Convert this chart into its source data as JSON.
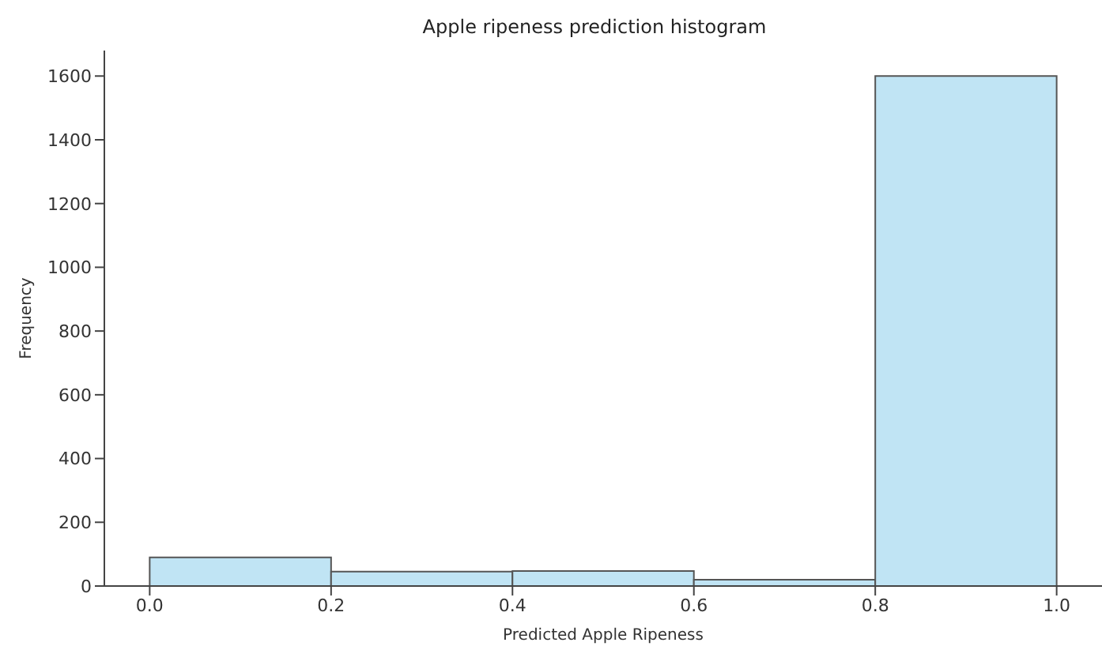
{
  "chart_data": {
    "type": "histogram",
    "title": "Apple ripeness prediction histogram",
    "xlabel": "Predicted Apple Ripeness",
    "ylabel": "Frequency",
    "bins": [
      0.0,
      0.2,
      0.4,
      0.6,
      0.8,
      1.0
    ],
    "values": [
      90,
      45,
      47,
      20,
      1600
    ],
    "color": "#c0e4f4",
    "xlim": [
      -0.05,
      1.05
    ],
    "xticks": [
      {
        "value": 0,
        "label": "0.0"
      },
      {
        "value": 0.2,
        "label": "0.2"
      },
      {
        "value": 0.4,
        "label": "0.4"
      },
      {
        "value": 0.6,
        "label": "0.6"
      },
      {
        "value": 0.8,
        "label": "0.8"
      },
      {
        "value": 1,
        "label": "1.0"
      }
    ],
    "ylim": [
      0,
      1680
    ],
    "yticks": [
      0,
      200,
      400,
      600,
      800,
      1000,
      1200,
      1400,
      1600
    ],
    "grid": false
  }
}
